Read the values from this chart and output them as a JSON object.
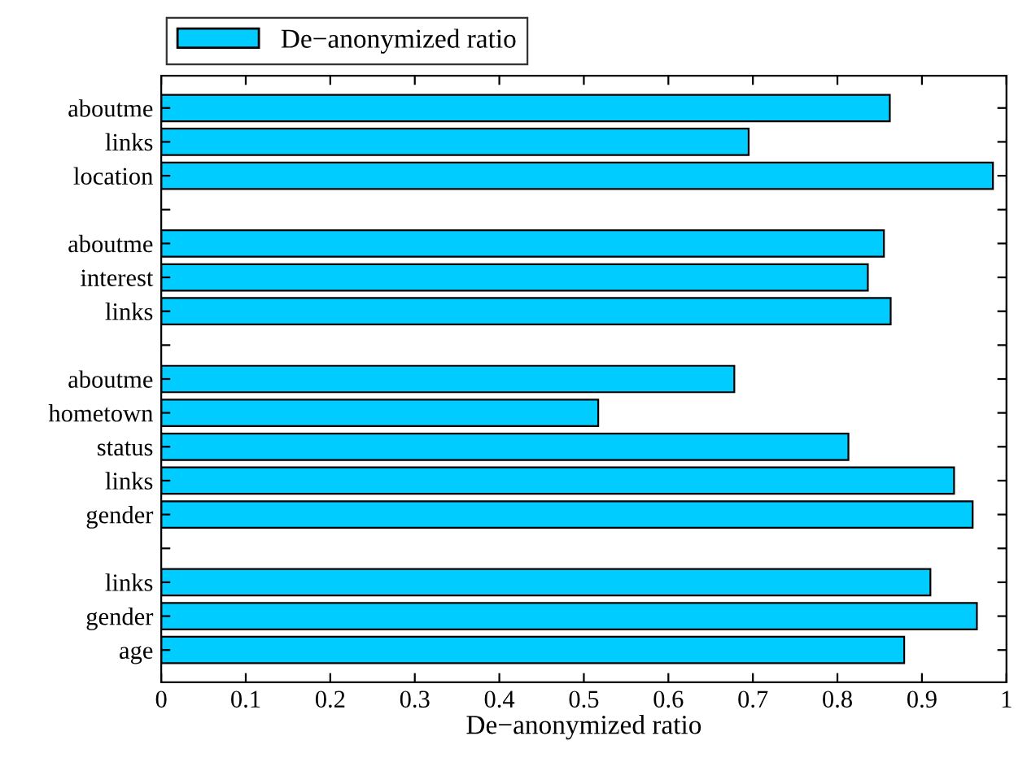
{
  "chart_data": {
    "type": "bar",
    "orientation": "horizontal",
    "xlabel": "De−anonymized ratio",
    "categories": [
      "aboutme",
      "links",
      "location",
      null,
      "aboutme",
      "interest",
      "links",
      null,
      "aboutme",
      "hometown",
      "status",
      "links",
      "gender",
      null,
      "links",
      "gender",
      "age"
    ],
    "series": [
      {
        "name": "De−anonymized ratio",
        "color": "#00ccff",
        "values": [
          0.862,
          0.695,
          0.984,
          null,
          0.855,
          0.836,
          0.863,
          null,
          0.678,
          0.517,
          0.813,
          0.938,
          0.96,
          null,
          0.91,
          0.965,
          0.879
        ]
      }
    ],
    "xlim": [
      0,
      1
    ],
    "xticks": [
      0,
      0.1,
      0.2,
      0.3,
      0.4,
      0.5,
      0.6,
      0.7,
      0.8,
      0.9,
      1
    ],
    "legend": "top",
    "grid": false
  }
}
